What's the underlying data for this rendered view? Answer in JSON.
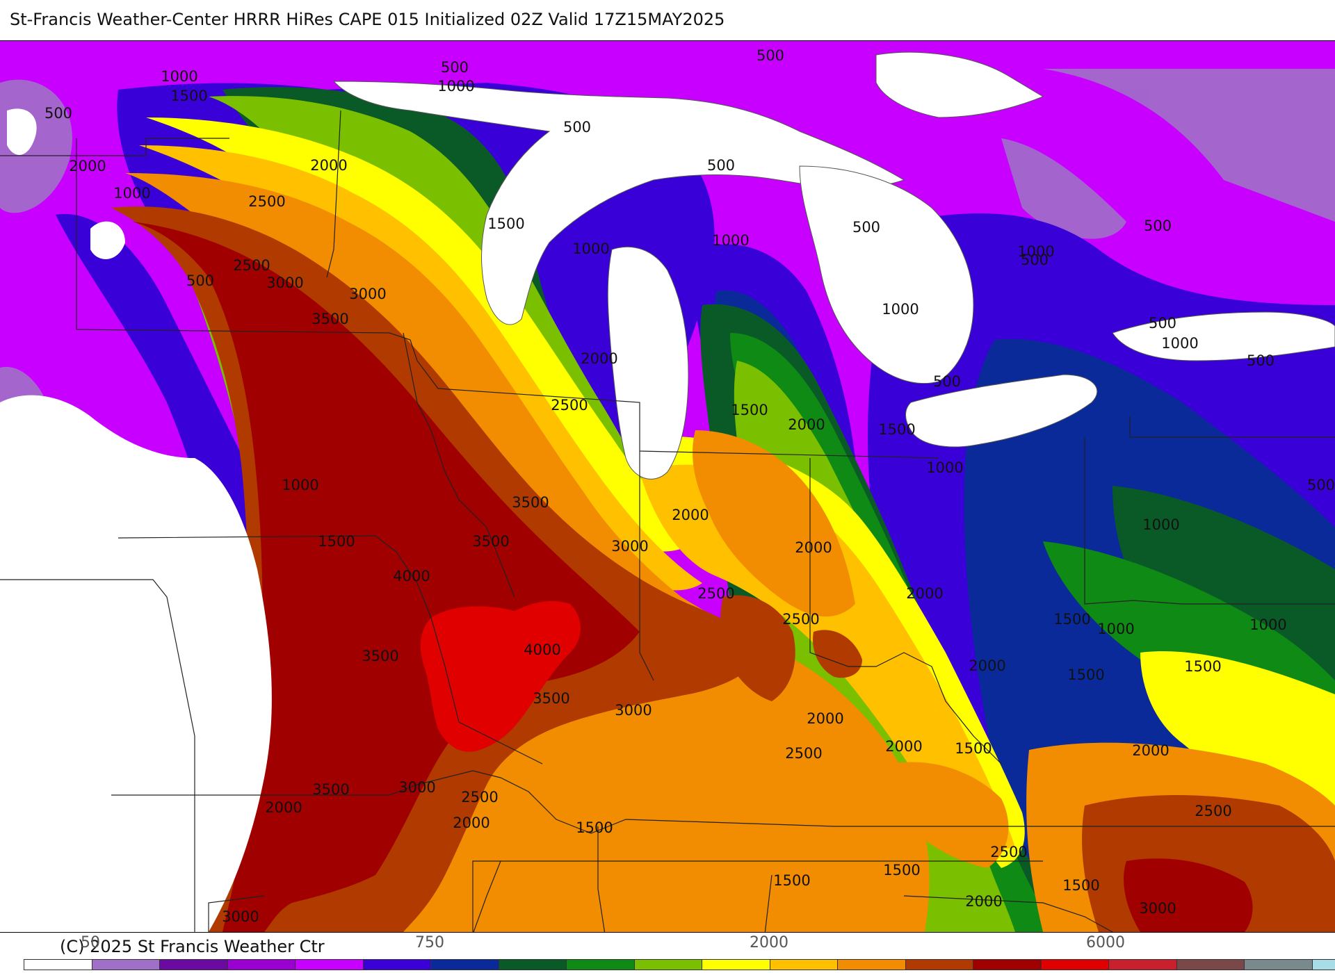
{
  "title": "St-Francis Weather-Center HRRR HiRes CAPE  015 Initialized  02Z Valid 17Z15MAY2025",
  "copyright": "(C) 2025 St Francis Weather Ctr",
  "legend": {
    "tick_labels": [
      "50",
      "750",
      "2000",
      "6000"
    ],
    "colors": [
      "#ffffff",
      "#a070c8",
      "#6a0aa0",
      "#9b00d2",
      "#c800ff",
      "#3a00d8",
      "#0a2a9a",
      "#0a5a28",
      "#0f8a14",
      "#7ac000",
      "#ffff00",
      "#ffc000",
      "#f28c00",
      "#b03a00",
      "#a00000",
      "#e00000",
      "#c8202c",
      "#7a4848",
      "#788a8c",
      "#a8dde8"
    ]
  },
  "contour_labels": [
    "500",
    "1000",
    "500",
    "1000",
    "1500",
    "500",
    "2000",
    "1000",
    "2000",
    "2500",
    "1500",
    "500",
    "1000",
    "2500",
    "3000",
    "500",
    "3000",
    "3500",
    "500",
    "1000",
    "500",
    "2000",
    "500",
    "1000",
    "500",
    "500",
    "1000",
    "500",
    "1500",
    "2000",
    "1500",
    "2500",
    "1000",
    "500",
    "1000",
    "3500",
    "3500",
    "2000",
    "3000",
    "1500",
    "2000",
    "1000",
    "4000",
    "2500",
    "2000",
    "1000",
    "1500",
    "1000",
    "2500",
    "1000",
    "4000",
    "500",
    "3500",
    "2000",
    "1500",
    "1500",
    "3500",
    "3000",
    "2000",
    "2000",
    "1500",
    "2500",
    "2000",
    "3000",
    "2500",
    "1500",
    "3500",
    "2000",
    "2500",
    "2500",
    "2000",
    "1500",
    "1500",
    "1500",
    "2000",
    "3000",
    "3000"
  ]
}
